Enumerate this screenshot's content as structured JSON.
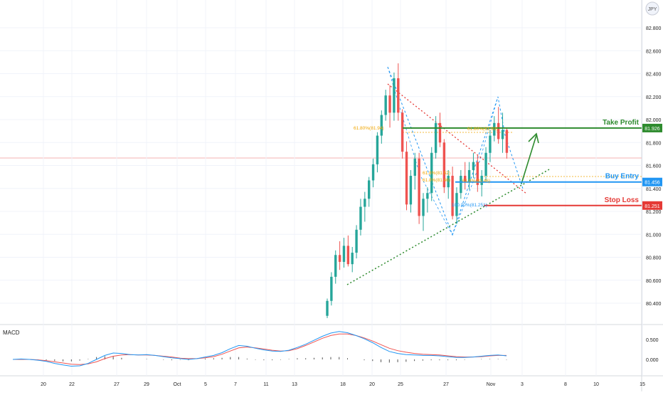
{
  "symbol_badge": "JPY",
  "indicator_label": "MACD",
  "colors": {
    "up": "#26a69a",
    "down": "#ef5350",
    "take_profit": "#2e8b2e",
    "buy_entry": "#2196f3",
    "stop_loss": "#e53935",
    "fib": "#f0a500",
    "macd_line": "#2196f3",
    "signal_line": "#ef5350",
    "hist": "#555555",
    "axis_text": "#222222",
    "grid": "#f0f3fa"
  },
  "chart_data": {
    "type": "candlestick",
    "price_axis": {
      "ticks": [
        80.4,
        80.6,
        80.8,
        81.0,
        81.2,
        81.4,
        81.6,
        81.8,
        82.0,
        82.2,
        82.4,
        82.6,
        82.8
      ],
      "tick_labels": [
        "80.400",
        "80.600",
        "80.800",
        "81.000",
        "81.200",
        "81.400",
        "81.600",
        "81.800",
        "82.000",
        "82.200",
        "82.400",
        "82.600",
        "82.800"
      ]
    },
    "macd_axis": {
      "tick_labels": [
        "0.500",
        "0.000"
      ],
      "ticks": [
        0.5,
        0.0
      ]
    },
    "time_axis": {
      "labels": [
        "20",
        "22",
        "27",
        "29",
        "Oct",
        "5",
        "7",
        "11",
        "13",
        "18",
        "20",
        "25",
        "27",
        "Nov",
        "3",
        "8",
        "10",
        "15"
      ]
    },
    "candles": [
      [
        80.29,
        80.44,
        80.27,
        80.42
      ],
      [
        80.42,
        80.67,
        80.38,
        80.63
      ],
      [
        80.63,
        80.86,
        80.57,
        80.82
      ],
      [
        80.82,
        80.94,
        80.69,
        80.76
      ],
      [
        80.76,
        80.97,
        80.71,
        80.9
      ],
      [
        80.9,
        80.99,
        80.72,
        80.74
      ],
      [
        80.74,
        80.89,
        80.67,
        80.84
      ],
      [
        80.84,
        81.08,
        80.79,
        81.04
      ],
      [
        81.04,
        81.31,
        80.99,
        81.24
      ],
      [
        81.24,
        81.37,
        81.11,
        81.31
      ],
      [
        81.31,
        81.5,
        81.24,
        81.47
      ],
      [
        81.47,
        81.66,
        81.41,
        81.61
      ],
      [
        81.61,
        81.89,
        81.54,
        81.86
      ],
      [
        81.86,
        82.08,
        81.79,
        82.04
      ],
      [
        82.04,
        82.26,
        81.99,
        82.21
      ],
      [
        82.21,
        82.3,
        81.93,
        82.06
      ],
      [
        82.06,
        82.41,
        81.99,
        82.36
      ],
      [
        82.36,
        82.49,
        81.99,
        82.06
      ],
      [
        82.06,
        82.09,
        81.66,
        81.72
      ],
      [
        81.72,
        81.81,
        81.21,
        81.26
      ],
      [
        81.26,
        81.56,
        81.19,
        81.51
      ],
      [
        81.51,
        81.71,
        81.39,
        81.66
      ],
      [
        81.66,
        81.71,
        81.09,
        81.16
      ],
      [
        81.16,
        81.36,
        81.03,
        81.31
      ],
      [
        81.31,
        81.41,
        81.19,
        81.36
      ],
      [
        81.36,
        81.76,
        81.29,
        81.71
      ],
      [
        81.71,
        82.03,
        81.66,
        81.97
      ],
      [
        81.97,
        82.06,
        81.76,
        81.8
      ],
      [
        81.8,
        81.83,
        81.36,
        81.41
      ],
      [
        81.41,
        81.56,
        81.31,
        81.51
      ],
      [
        81.51,
        81.59,
        81.13,
        81.16
      ],
      [
        81.16,
        81.41,
        81.09,
        81.36
      ],
      [
        81.36,
        81.56,
        81.31,
        81.51
      ],
      [
        81.51,
        81.63,
        81.39,
        81.46
      ],
      [
        81.46,
        81.63,
        81.39,
        81.56
      ],
      [
        81.56,
        81.71,
        81.49,
        81.63
      ],
      [
        81.63,
        81.69,
        81.37,
        81.43
      ],
      [
        81.43,
        81.56,
        81.33,
        81.51
      ],
      [
        81.51,
        81.76,
        81.47,
        81.71
      ],
      [
        81.71,
        81.91,
        81.63,
        81.86
      ],
      [
        81.86,
        82.03,
        81.81,
        81.97
      ],
      [
        81.97,
        82.11,
        81.79,
        81.83
      ],
      [
        81.83,
        82.06,
        81.71,
        81.91
      ],
      [
        81.91,
        81.93,
        81.66,
        81.71
      ]
    ],
    "levels": [
      {
        "name": "Take Profit",
        "value": 81.926,
        "label": "81.926"
      },
      {
        "name": "Buy Entry",
        "value": 81.456,
        "label": "81.456"
      },
      {
        "name": "Stop Loss",
        "value": 81.251,
        "label": "81.251"
      }
    ],
    "annotations": {
      "fib_upper_left": "61.80%(81.94)",
      "fib_upper_right": "61.80%(81.93)",
      "fib_mid_1": "61.8%(81.52)",
      "fib_mid_2": "61.8%(81.46)",
      "fib_mid_3": "61.8%(81.46)",
      "fib_bottom": "100.00%(81.251)"
    },
    "macd": {
      "macd": [
        0.0,
        0.01,
        0.0,
        -0.02,
        -0.05,
        -0.1,
        -0.14,
        -0.17,
        -0.16,
        -0.1,
        0.0,
        0.1,
        0.16,
        0.15,
        0.12,
        0.11,
        0.12,
        0.1,
        0.07,
        0.04,
        0.02,
        0.0,
        0.02,
        0.06,
        0.1,
        0.17,
        0.27,
        0.35,
        0.33,
        0.28,
        0.24,
        0.21,
        0.2,
        0.23,
        0.3,
        0.38,
        0.48,
        0.58,
        0.66,
        0.7,
        0.67,
        0.6,
        0.52,
        0.42,
        0.3,
        0.2,
        0.15,
        0.12,
        0.11,
        0.1,
        0.1,
        0.09,
        0.07,
        0.05,
        0.05,
        0.06,
        0.08,
        0.1,
        0.11,
        0.09
      ],
      "signal": [
        0.0,
        0.0,
        0.0,
        -0.01,
        -0.03,
        -0.06,
        -0.09,
        -0.12,
        -0.13,
        -0.11,
        -0.06,
        0.02,
        0.08,
        0.11,
        0.12,
        0.11,
        0.11,
        0.1,
        0.08,
        0.06,
        0.03,
        0.02,
        0.02,
        0.04,
        0.07,
        0.13,
        0.21,
        0.29,
        0.31,
        0.29,
        0.26,
        0.23,
        0.21,
        0.22,
        0.27,
        0.35,
        0.44,
        0.53,
        0.6,
        0.64,
        0.64,
        0.6,
        0.54,
        0.46,
        0.37,
        0.28,
        0.22,
        0.18,
        0.15,
        0.13,
        0.12,
        0.11,
        0.09,
        0.07,
        0.06,
        0.06,
        0.07,
        0.09,
        0.1,
        0.1
      ],
      "hist": [
        0.0,
        0.01,
        0.0,
        -0.01,
        -0.02,
        -0.04,
        -0.05,
        -0.05,
        -0.03,
        0.01,
        0.06,
        0.08,
        0.08,
        0.04,
        0.0,
        0.0,
        0.01,
        0.0,
        -0.01,
        -0.02,
        -0.01,
        -0.02,
        0.0,
        0.02,
        0.03,
        0.04,
        0.06,
        0.06,
        0.02,
        -0.01,
        -0.02,
        -0.02,
        -0.01,
        0.01,
        0.03,
        0.03,
        0.04,
        0.05,
        0.06,
        0.06,
        0.03,
        0.0,
        -0.02,
        -0.04,
        -0.07,
        -0.08,
        -0.07,
        -0.06,
        -0.04,
        -0.03,
        -0.02,
        -0.02,
        -0.02,
        -0.02,
        -0.01,
        0.0,
        0.01,
        0.01,
        0.01,
        -0.01
      ],
      "ylim": [
        -0.25,
        0.85
      ]
    }
  }
}
